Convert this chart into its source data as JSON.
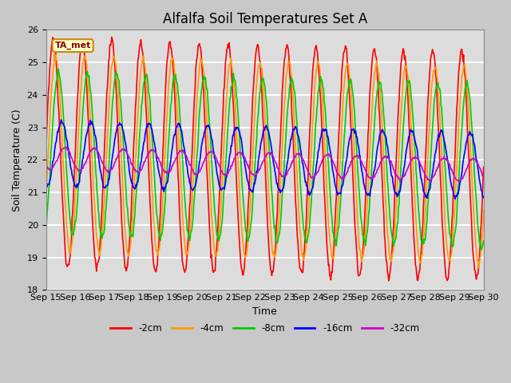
{
  "title": "Alfalfa Soil Temperatures Set A",
  "ylabel": "Soil Temperature (C)",
  "xlabel": "Time",
  "annotation": "TA_met",
  "ylim": [
    18.0,
    26.0
  ],
  "yticks": [
    18.0,
    19.0,
    20.0,
    21.0,
    22.0,
    23.0,
    24.0,
    25.0,
    26.0
  ],
  "x_labels": [
    "Sep 15",
    "Sep 16",
    "Sep 17",
    "Sep 18",
    "Sep 19",
    "Sep 20",
    "Sep 21",
    "Sep 22",
    "Sep 23",
    "Sep 24",
    "Sep 25",
    "Sep 26",
    "Sep 27",
    "Sep 28",
    "Sep 29",
    "Sep 30"
  ],
  "series": {
    "-2cm": {
      "color": "#ff0000",
      "lw": 1.2
    },
    "-4cm": {
      "color": "#ff9900",
      "lw": 1.2
    },
    "-8cm": {
      "color": "#00cc00",
      "lw": 1.2
    },
    "-16cm": {
      "color": "#0000ff",
      "lw": 1.2
    },
    "-32cm": {
      "color": "#cc00cc",
      "lw": 1.2
    }
  },
  "amp_2cm": 3.5,
  "amp_4cm": 3.0,
  "amp_8cm": 2.5,
  "amp_16cm": 1.0,
  "amp_32cm": 0.35,
  "phase_2cm": 0.0,
  "phase_4cm": 0.5,
  "phase_8cm": 1.1,
  "phase_16cm": 1.8,
  "phase_32cm": 2.5,
  "base_temp": 22.2,
  "trend": -0.025,
  "n_days": 15,
  "n_per_day": 48,
  "bg_color": "#dcdcdc",
  "fig_bg_color": "#c8c8c8",
  "grid_color": "#ffffff",
  "title_fontsize": 12,
  "label_fontsize": 9,
  "tick_fontsize": 8
}
